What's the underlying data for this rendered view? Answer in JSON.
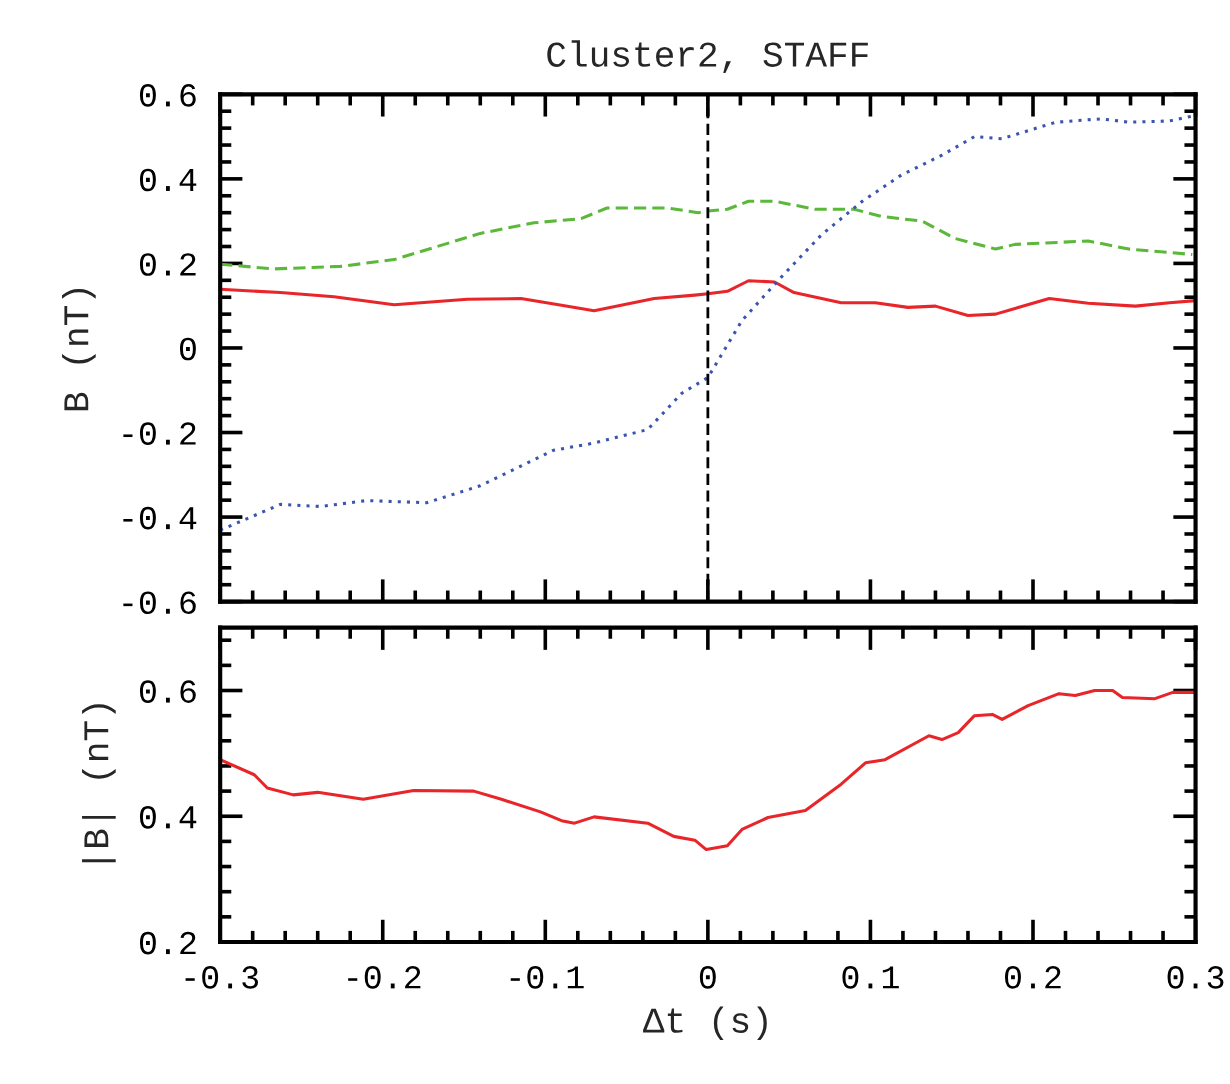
{
  "chart_data": [
    {
      "type": "line",
      "title": "Cluster2, STAFF",
      "ylabel": "B (nT)",
      "xlim": [
        -0.3,
        0.3
      ],
      "xticks": [
        -0.3,
        -0.2,
        -0.1,
        0,
        0.1,
        0.2,
        0.3
      ],
      "ylim": [
        -0.6,
        0.6
      ],
      "yticks": [
        -0.6,
        -0.4,
        -0.2,
        0,
        0.2,
        0.4,
        0.6
      ],
      "tick_labels": "y",
      "grid": false,
      "legend": false,
      "ref_lines": [
        {
          "axis": "x",
          "value": 0,
          "color": "#000000",
          "line_style": "dashed"
        }
      ],
      "series": [
        {
          "color": "#e8262a",
          "line_style": "solid",
          "x": [
            -0.3,
            -0.263,
            -0.23,
            -0.193,
            -0.148,
            -0.115,
            -0.09,
            -0.07,
            -0.033,
            -0.008,
            0,
            0.012,
            0.025,
            0.041,
            0.053,
            0.082,
            0.103,
            0.123,
            0.14,
            0.16,
            0.177,
            0.21,
            0.234,
            0.263,
            0.284,
            0.3
          ],
          "values": [
            0.139,
            0.131,
            0.121,
            0.102,
            0.115,
            0.117,
            0.101,
            0.088,
            0.117,
            0.125,
            0.128,
            0.134,
            0.159,
            0.156,
            0.131,
            0.107,
            0.107,
            0.096,
            0.099,
            0.077,
            0.08,
            0.117,
            0.106,
            0.099,
            0.107,
            0.112
          ]
        },
        {
          "color": "#5cb83a",
          "line_style": "dashed",
          "x": [
            -0.3,
            -0.267,
            -0.226,
            -0.193,
            -0.14,
            -0.107,
            -0.078,
            -0.062,
            -0.025,
            -0.006,
            0,
            0.012,
            0.025,
            0.041,
            0.066,
            0.09,
            0.107,
            0.132,
            0.152,
            0.177,
            0.189,
            0.234,
            0.259,
            0.298
          ],
          "values": [
            0.198,
            0.187,
            0.193,
            0.209,
            0.271,
            0.296,
            0.306,
            0.331,
            0.331,
            0.32,
            0.324,
            0.328,
            0.347,
            0.347,
            0.328,
            0.328,
            0.311,
            0.3,
            0.259,
            0.234,
            0.245,
            0.253,
            0.234,
            0.221
          ]
        },
        {
          "color": "#3a55b0",
          "line_style": "dotted",
          "x": [
            -0.3,
            -0.263,
            -0.238,
            -0.21,
            -0.173,
            -0.14,
            -0.095,
            -0.07,
            -0.037,
            -0.016,
            0,
            0.021,
            0.045,
            0.07,
            0.095,
            0.119,
            0.144,
            0.164,
            0.181,
            0.214,
            0.242,
            0.259,
            0.284,
            0.3
          ],
          "values": [
            -0.431,
            -0.37,
            -0.375,
            -0.361,
            -0.366,
            -0.326,
            -0.242,
            -0.225,
            -0.193,
            -0.107,
            -0.07,
            0.065,
            0.167,
            0.268,
            0.347,
            0.409,
            0.456,
            0.5,
            0.495,
            0.534,
            0.542,
            0.534,
            0.537,
            0.55
          ]
        }
      ]
    },
    {
      "type": "line",
      "xlabel": "Δt (s)",
      "ylabel": "|B| (nT)",
      "xlim": [
        -0.3,
        0.3
      ],
      "xticks": [
        -0.3,
        -0.2,
        -0.1,
        0,
        0.1,
        0.2,
        0.3
      ],
      "ylim": [
        0.2,
        0.7
      ],
      "yticks": [
        0.2,
        0.4,
        0.6
      ],
      "grid": false,
      "legend": false,
      "series": [
        {
          "color": "#e8262a",
          "line_style": "solid",
          "x": [
            -0.3,
            -0.279,
            -0.271,
            -0.255,
            -0.24,
            -0.212,
            -0.181,
            -0.144,
            -0.127,
            -0.103,
            -0.09,
            -0.082,
            -0.07,
            -0.037,
            -0.021,
            -0.008,
            -0.001,
            0.012,
            0.021,
            0.037,
            0.06,
            0.082,
            0.097,
            0.109,
            0.136,
            0.144,
            0.154,
            0.164,
            0.175,
            0.181,
            0.197,
            0.216,
            0.226,
            0.238,
            0.249,
            0.255,
            0.275,
            0.286,
            0.3
          ],
          "values": [
            0.49,
            0.466,
            0.445,
            0.434,
            0.438,
            0.427,
            0.441,
            0.44,
            0.427,
            0.407,
            0.393,
            0.389,
            0.399,
            0.389,
            0.368,
            0.362,
            0.347,
            0.353,
            0.379,
            0.398,
            0.409,
            0.451,
            0.485,
            0.49,
            0.528,
            0.522,
            0.533,
            0.56,
            0.562,
            0.554,
            0.576,
            0.595,
            0.592,
            0.6,
            0.6,
            0.589,
            0.587,
            0.597,
            0.597
          ]
        }
      ]
    }
  ]
}
